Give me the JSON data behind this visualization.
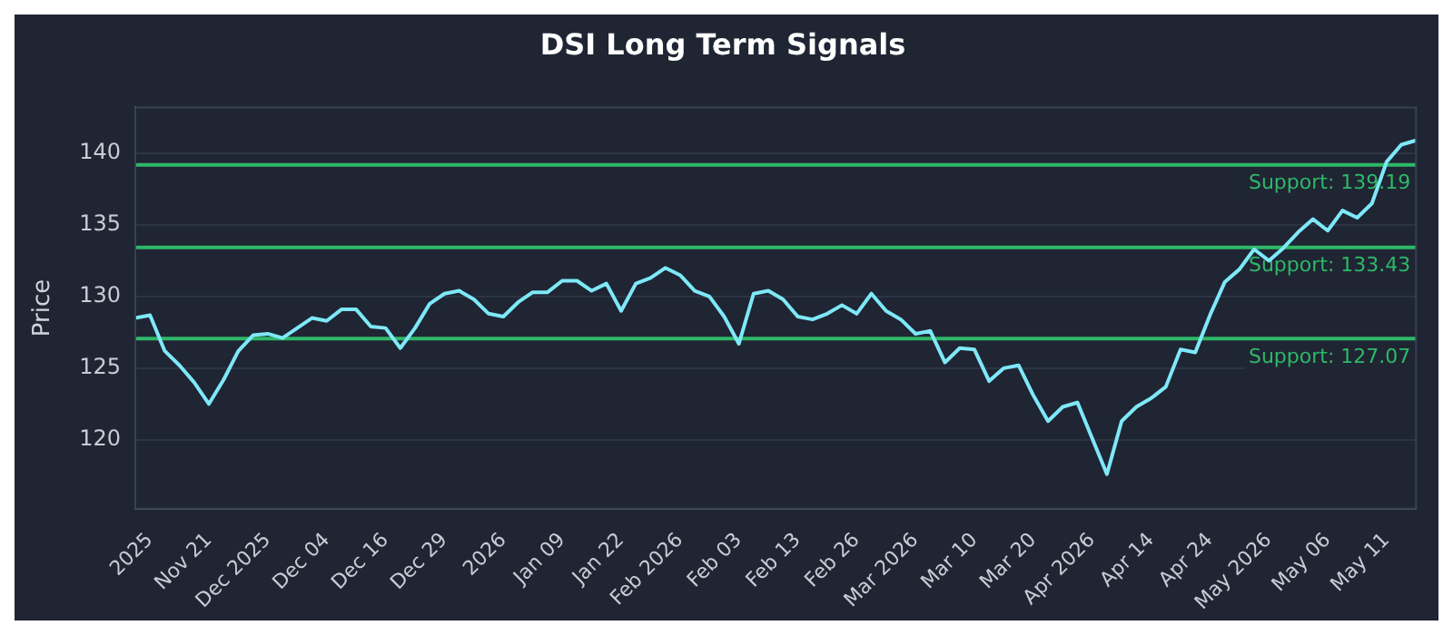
{
  "chart_data": {
    "type": "line",
    "title": "DSI Long Term Signals",
    "ylabel": "Price",
    "categories": [
      null,
      "2025",
      null,
      null,
      null,
      "Nov 21",
      null,
      null,
      null,
      "Dec 2025",
      null,
      null,
      null,
      "Dec 04",
      null,
      null,
      null,
      "Dec 16",
      null,
      null,
      null,
      "Dec 29",
      null,
      null,
      null,
      "2026",
      null,
      null,
      null,
      "Jan 09",
      null,
      null,
      null,
      "Jan 22",
      null,
      null,
      null,
      "Feb 2026",
      null,
      null,
      null,
      "Feb 03",
      null,
      null,
      null,
      "Feb 13",
      null,
      null,
      null,
      "Feb 26",
      null,
      null,
      null,
      "Mar 2026",
      null,
      null,
      null,
      "Mar 10",
      null,
      null,
      null,
      "Mar 20",
      null,
      null,
      null,
      "Apr 2026",
      null,
      null,
      null,
      "Apr 14",
      null,
      null,
      null,
      "Apr 24",
      null,
      null,
      null,
      "May 2026",
      null,
      null,
      null,
      "May 06",
      null,
      null,
      null,
      "May 11",
      null,
      null
    ],
    "series": [
      {
        "color": "#7ee8f8",
        "values": [
          128.5,
          128.7,
          126.2,
          125.2,
          124.0,
          122.5,
          124.2,
          126.2,
          127.3,
          127.4,
          127.1,
          127.8,
          128.5,
          128.3,
          129.1,
          129.1,
          127.9,
          127.8,
          126.4,
          127.8,
          129.5,
          130.2,
          130.4,
          129.8,
          128.8,
          128.6,
          129.6,
          130.3,
          130.3,
          131.1,
          131.1,
          130.4,
          130.9,
          129.0,
          130.9,
          131.3,
          132.0,
          131.5,
          130.4,
          130.0,
          128.6,
          126.7,
          130.2,
          130.4,
          129.8,
          128.6,
          128.4,
          128.8,
          129.4,
          128.8,
          130.2,
          129.0,
          128.4,
          127.4,
          127.6,
          125.4,
          126.4,
          126.3,
          124.1,
          125.0,
          125.2,
          123.1,
          121.3,
          122.3,
          122.6,
          120.1,
          117.6,
          121.3,
          122.3,
          122.9,
          123.7,
          126.3,
          126.1,
          128.7,
          131.0,
          131.9,
          133.3,
          132.5,
          133.4,
          134.5,
          135.4,
          134.6,
          136.0,
          135.5,
          136.5,
          139.4,
          140.6,
          140.9
        ]
      }
    ],
    "ylim": [
      115.2,
      143.2
    ],
    "yticks": [
      120,
      125,
      130,
      135,
      140
    ],
    "grid": "y",
    "legend": false,
    "marker": "none",
    "line_style": "solid",
    "ref_lines": [
      {
        "axis": "y",
        "value": 139.19,
        "label": "Support: 139.19",
        "color": "#2fb868"
      },
      {
        "axis": "y",
        "value": 133.43,
        "label": "Support: 133.43",
        "color": "#2fb868"
      },
      {
        "axis": "y",
        "value": 127.07,
        "label": "Support: 127.07",
        "color": "#2fb868"
      }
    ]
  }
}
